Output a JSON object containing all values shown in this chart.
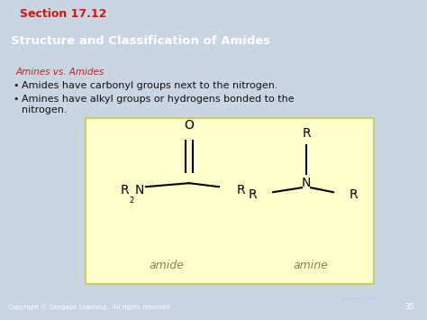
{
  "title": "Structure and Classification of Amides",
  "section": "Section 17.12",
  "subtitle": "Amines vs. Amides",
  "bullet1": "Amides have carbonyl groups next to the nitrogen.",
  "bullet2a": "Amines have alkyl groups or hydrogens bonded to the",
  "bullet2b": "nitrogen.",
  "amide_label": "amide",
  "amine_label": "amine",
  "copyright": "Copyright © Cengage Learning.  All rights reserved.",
  "page_num": "35",
  "bg_color": "#c8d5e2",
  "header_bg": "#5580aa",
  "section_bg": "#cc2222",
  "section_left_green": "#5a8a3a",
  "yellow_box_bg": "#ffffcc",
  "yellow_box_border": "#cccc66",
  "title_color": "#ffffff",
  "section_color": "#dd1111",
  "subtitle_color": "#cc2222",
  "text_color": "#111111",
  "label_color": "#888855",
  "footer_bg": "#5580aa",
  "footer_text": "#ffffff"
}
